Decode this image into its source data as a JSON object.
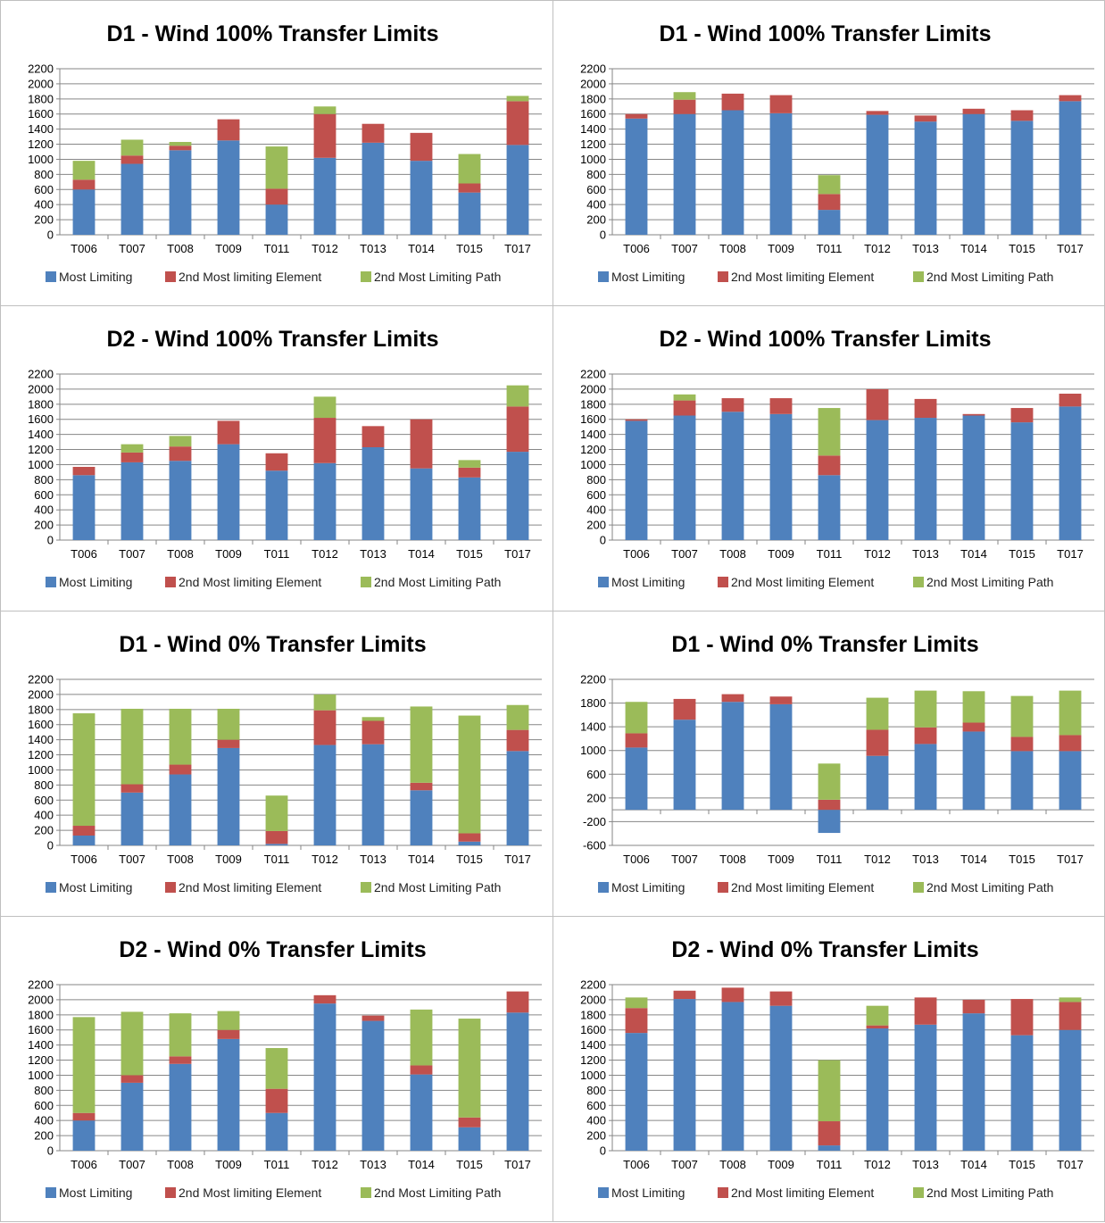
{
  "colors": {
    "most_limiting": "#4f81bd",
    "second_element": "#c0504d",
    "second_path": "#9bbb59",
    "grid": "#868686",
    "axis": "#868686"
  },
  "chart_data": [
    {
      "type": "bar",
      "stacked": true,
      "title": "D1 - Wind 100% Transfer Limits",
      "categories": [
        "T006",
        "T007",
        "T008",
        "T009",
        "T011",
        "T012",
        "T013",
        "T014",
        "T015",
        "T017"
      ],
      "series": [
        {
          "name": "Most Limiting",
          "values": [
            600,
            940,
            1120,
            1250,
            400,
            1020,
            1220,
            980,
            560,
            1190
          ]
        },
        {
          "name": "2nd Most limiting Element",
          "values": [
            130,
            110,
            60,
            280,
            210,
            580,
            250,
            370,
            120,
            580
          ]
        },
        {
          "name": "2nd Most Limiting Path",
          "values": [
            250,
            210,
            50,
            0,
            560,
            100,
            0,
            0,
            390,
            70
          ]
        }
      ],
      "ylim": [
        0,
        2200
      ],
      "yticks": [
        0,
        200,
        400,
        600,
        800,
        1000,
        1200,
        1400,
        1600,
        1800,
        2000,
        2200
      ],
      "grid": true,
      "legend": "bottom"
    },
    {
      "type": "bar",
      "stacked": true,
      "title": "D1 - Wind 100% Transfer Limits",
      "categories": [
        "T006",
        "T007",
        "T008",
        "T009",
        "T011",
        "T012",
        "T013",
        "T014",
        "T015",
        "T017"
      ],
      "series": [
        {
          "name": "Most Limiting",
          "values": [
            1540,
            1600,
            1650,
            1610,
            330,
            1590,
            1500,
            1600,
            1510,
            1770
          ]
        },
        {
          "name": "2nd Most limiting Element",
          "values": [
            60,
            190,
            220,
            240,
            210,
            50,
            80,
            70,
            140,
            80
          ]
        },
        {
          "name": "2nd Most Limiting Path",
          "values": [
            0,
            100,
            0,
            0,
            250,
            0,
            0,
            0,
            0,
            0
          ]
        }
      ],
      "ylim": [
        0,
        2200
      ],
      "yticks": [
        0,
        200,
        400,
        600,
        800,
        1000,
        1200,
        1400,
        1600,
        1800,
        2000,
        2200
      ],
      "grid": true,
      "legend": "bottom"
    },
    {
      "type": "bar",
      "stacked": true,
      "title": "D2 - Wind 100% Transfer Limits",
      "categories": [
        "T006",
        "T007",
        "T008",
        "T009",
        "T011",
        "T012",
        "T013",
        "T014",
        "T015",
        "T017"
      ],
      "series": [
        {
          "name": "Most Limiting",
          "values": [
            860,
            1030,
            1050,
            1270,
            920,
            1020,
            1230,
            950,
            830,
            1170
          ]
        },
        {
          "name": "2nd Most limiting Element",
          "values": [
            110,
            130,
            190,
            310,
            230,
            600,
            280,
            650,
            130,
            600
          ]
        },
        {
          "name": "2nd Most Limiting Path",
          "values": [
            0,
            110,
            140,
            0,
            0,
            280,
            0,
            0,
            100,
            280
          ]
        }
      ],
      "ylim": [
        0,
        2200
      ],
      "yticks": [
        0,
        200,
        400,
        600,
        800,
        1000,
        1200,
        1400,
        1600,
        1800,
        2000,
        2200
      ],
      "grid": true,
      "legend": "bottom"
    },
    {
      "type": "bar",
      "stacked": true,
      "title": "D2 - Wind 100% Transfer Limits",
      "categories": [
        "T006",
        "T007",
        "T008",
        "T009",
        "T011",
        "T012",
        "T013",
        "T014",
        "T015",
        "T017"
      ],
      "series": [
        {
          "name": "Most Limiting",
          "values": [
            1580,
            1650,
            1700,
            1670,
            860,
            1590,
            1620,
            1650,
            1560,
            1770
          ]
        },
        {
          "name": "2nd Most limiting Element",
          "values": [
            20,
            200,
            180,
            210,
            260,
            410,
            250,
            20,
            190,
            170
          ]
        },
        {
          "name": "2nd Most Limiting Path",
          "values": [
            0,
            80,
            0,
            0,
            630,
            0,
            0,
            0,
            0,
            0
          ]
        }
      ],
      "ylim": [
        0,
        2200
      ],
      "yticks": [
        0,
        200,
        400,
        600,
        800,
        1000,
        1200,
        1400,
        1600,
        1800,
        2000,
        2200
      ],
      "grid": true,
      "legend": "bottom"
    },
    {
      "type": "bar",
      "stacked": true,
      "title": "D1 - Wind 0% Transfer Limits",
      "categories": [
        "T006",
        "T007",
        "T008",
        "T009",
        "T011",
        "T012",
        "T013",
        "T014",
        "T015",
        "T017"
      ],
      "series": [
        {
          "name": "Most Limiting",
          "values": [
            130,
            700,
            940,
            1290,
            20,
            1330,
            1340,
            730,
            50,
            1250
          ]
        },
        {
          "name": "2nd Most limiting Element",
          "values": [
            130,
            110,
            130,
            110,
            170,
            460,
            310,
            100,
            110,
            280
          ]
        },
        {
          "name": "2nd Most Limiting Path",
          "values": [
            1490,
            1000,
            740,
            410,
            470,
            210,
            50,
            1010,
            1560,
            330
          ]
        }
      ],
      "ylim": [
        0,
        2200
      ],
      "yticks": [
        0,
        200,
        400,
        600,
        800,
        1000,
        1200,
        1400,
        1600,
        1800,
        2000,
        2200
      ],
      "grid": true,
      "legend": "bottom"
    },
    {
      "type": "bar",
      "stacked": true,
      "title": "D1 - Wind 0% Transfer Limits",
      "categories": [
        "T006",
        "T007",
        "T008",
        "T009",
        "T011",
        "T012",
        "T013",
        "T014",
        "T015",
        "T017"
      ],
      "series": [
        {
          "name": "Most Limiting",
          "values": [
            1050,
            1520,
            1820,
            1780,
            -390,
            910,
            1110,
            1320,
            990,
            990
          ]
        },
        {
          "name": "2nd Most limiting Element",
          "values": [
            240,
            350,
            130,
            130,
            170,
            440,
            280,
            150,
            240,
            270
          ]
        },
        {
          "name": "2nd Most Limiting Path",
          "values": [
            530,
            0,
            0,
            0,
            610,
            540,
            620,
            530,
            690,
            750
          ]
        }
      ],
      "ylim": [
        -600,
        2200
      ],
      "yticks": [
        -600,
        -200,
        200,
        600,
        1000,
        1400,
        1800,
        2200
      ],
      "grid": true,
      "legend": "bottom"
    },
    {
      "type": "bar",
      "stacked": true,
      "title": "D2 - Wind 0% Transfer Limits",
      "categories": [
        "T006",
        "T007",
        "T008",
        "T009",
        "T011",
        "T012",
        "T013",
        "T014",
        "T015",
        "T017"
      ],
      "series": [
        {
          "name": "Most Limiting",
          "values": [
            400,
            900,
            1150,
            1480,
            500,
            1950,
            1720,
            1010,
            310,
            1830
          ]
        },
        {
          "name": "2nd Most limiting Element",
          "values": [
            100,
            100,
            100,
            120,
            320,
            110,
            70,
            120,
            130,
            280
          ]
        },
        {
          "name": "2nd Most Limiting Path",
          "values": [
            1270,
            840,
            570,
            250,
            540,
            0,
            0,
            740,
            1310,
            0
          ]
        }
      ],
      "ylim": [
        0,
        2200
      ],
      "yticks": [
        0,
        200,
        400,
        600,
        800,
        1000,
        1200,
        1400,
        1600,
        1800,
        2000,
        2200
      ],
      "grid": true,
      "legend": "bottom"
    },
    {
      "type": "bar",
      "stacked": true,
      "title": "D2 - Wind 0% Transfer Limits",
      "categories": [
        "T006",
        "T007",
        "T008",
        "T009",
        "T011",
        "T012",
        "T013",
        "T014",
        "T015",
        "T017"
      ],
      "series": [
        {
          "name": "Most Limiting",
          "values": [
            1560,
            2010,
            1970,
            1920,
            70,
            1620,
            1670,
            1820,
            1530,
            1600
          ]
        },
        {
          "name": "2nd Most limiting Element",
          "values": [
            330,
            110,
            190,
            190,
            320,
            40,
            360,
            180,
            480,
            370
          ]
        },
        {
          "name": "2nd Most Limiting Path",
          "values": [
            140,
            0,
            0,
            0,
            810,
            260,
            0,
            0,
            0,
            60
          ]
        }
      ],
      "ylim": [
        0,
        2200
      ],
      "yticks": [
        0,
        200,
        400,
        600,
        800,
        1000,
        1200,
        1400,
        1600,
        1800,
        2000,
        2200
      ],
      "grid": true,
      "legend": "bottom"
    }
  ]
}
